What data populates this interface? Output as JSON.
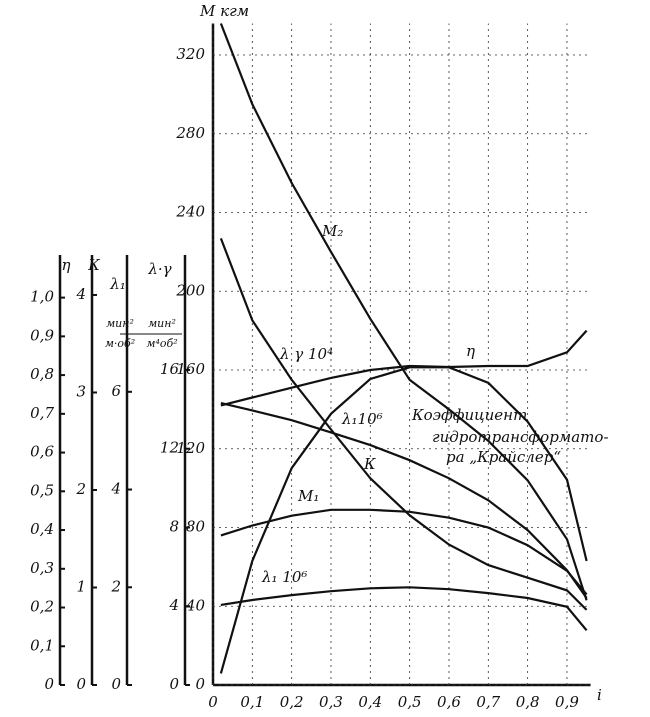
{
  "chart_data": {
    "type": "line",
    "xlabel": "i",
    "xlim": [
      0,
      0.96
    ],
    "xticks": [
      0,
      {
        "value": 0.1,
        "label": "0,1"
      },
      {
        "value": 0.2,
        "label": "0,2"
      },
      {
        "value": 0.3,
        "label": "0,3"
      },
      {
        "value": 0.4,
        "label": "0,4"
      },
      {
        "value": 0.5,
        "label": "0,5"
      },
      {
        "value": 0.6,
        "label": "0,6"
      },
      {
        "value": 0.7,
        "label": "0,7"
      },
      {
        "value": 0.8,
        "label": "0,8"
      },
      {
        "value": 0.9,
        "label": "0,9"
      }
    ],
    "ylabel": "M кгм",
    "ylim": [
      0,
      336
    ],
    "yticks": [
      0,
      40,
      80,
      120,
      160,
      200,
      240,
      280,
      320
    ],
    "y2label": "η",
    "y2lim": [
      0,
      1.11
    ],
    "y2ticks": [
      0,
      {
        "value": 0.1,
        "label": "0,1"
      },
      {
        "value": 0.2,
        "label": "0,2"
      },
      {
        "value": 0.3,
        "label": "0,3"
      },
      {
        "value": 0.4,
        "label": "0,4"
      },
      {
        "value": 0.5,
        "label": "0,5"
      },
      {
        "value": 0.6,
        "label": "0,6"
      },
      {
        "value": 0.7,
        "label": "0,7"
      },
      {
        "value": 0.8,
        "label": "0,8"
      },
      {
        "value": 0.9,
        "label": "0,9"
      },
      {
        "value": 1.0,
        "label": "1,0"
      }
    ],
    "y3label": "К",
    "y3lim": [
      0,
      4.41
    ],
    "y3ticks": [
      0,
      1,
      2,
      3,
      4
    ],
    "y4label": "λ₁",
    "y4units": [
      "мин²",
      "м·об²"
    ],
    "y4lim": [
      0,
      8.8
    ],
    "y4ticks": [
      0,
      2,
      4,
      6
    ],
    "y5label": "λ·γ",
    "y5units": [
      "мин²",
      "м⁴об²"
    ],
    "y5lim": [
      0,
      21.84
    ],
    "y5ticks": [
      0,
      4,
      8,
      12,
      16
    ],
    "grid": true,
    "x": [
      0.02,
      0.1,
      0.2,
      0.3,
      0.4,
      0.5,
      0.6,
      0.7,
      0.8,
      0.9,
      0.95
    ],
    "series": [
      {
        "name": "M₂",
        "color": "#111",
        "values": [
          336,
          295,
          255,
          220,
          186,
          155,
          140,
          124,
          104,
          74,
          43
        ]
      },
      {
        "name": "M₁",
        "color": "#111",
        "values": [
          76,
          81,
          86,
          89,
          89,
          88,
          85,
          80,
          71,
          58,
          46
        ]
      },
      {
        "name": "λ₁10⁶",
        "color": "#111",
        "axis": "y4",
        "values": [
          5.77,
          5.62,
          5.42,
          5.17,
          4.91,
          4.6,
          4.23,
          3.78,
          3.17,
          2.35,
          1.78
        ]
      },
      {
        "name": "λ₁ 10⁶",
        "color": "#111",
        "axis": "y4",
        "values": [
          1.64,
          1.74,
          1.84,
          1.92,
          1.98,
          2.0,
          1.96,
          1.88,
          1.78,
          1.6,
          1.12
        ]
      },
      {
        "name": "К",
        "color": "#111",
        "axis": "y3",
        "values": [
          4.58,
          3.74,
          3.13,
          2.62,
          2.12,
          1.74,
          1.44,
          1.23,
          1.1,
          0.97,
          0.77
        ]
      },
      {
        "name": "λ γ 10⁴",
        "color": "#111",
        "axis": "y5",
        "values": [
          14.2,
          14.6,
          15.1,
          15.6,
          16.0,
          16.2,
          16.15,
          16.2,
          16.2,
          16.9,
          18.0
        ]
      },
      {
        "name": "η",
        "color": "#111",
        "axis": "y2",
        "values": [
          0.03,
          0.32,
          0.56,
          0.7,
          0.79,
          0.82,
          0.82,
          0.78,
          0.68,
          0.53,
          0.32
        ]
      }
    ],
    "annotation": [
      "Коэффициент",
      "гидротрансформато-",
      "ра „Крайслер“"
    ]
  }
}
